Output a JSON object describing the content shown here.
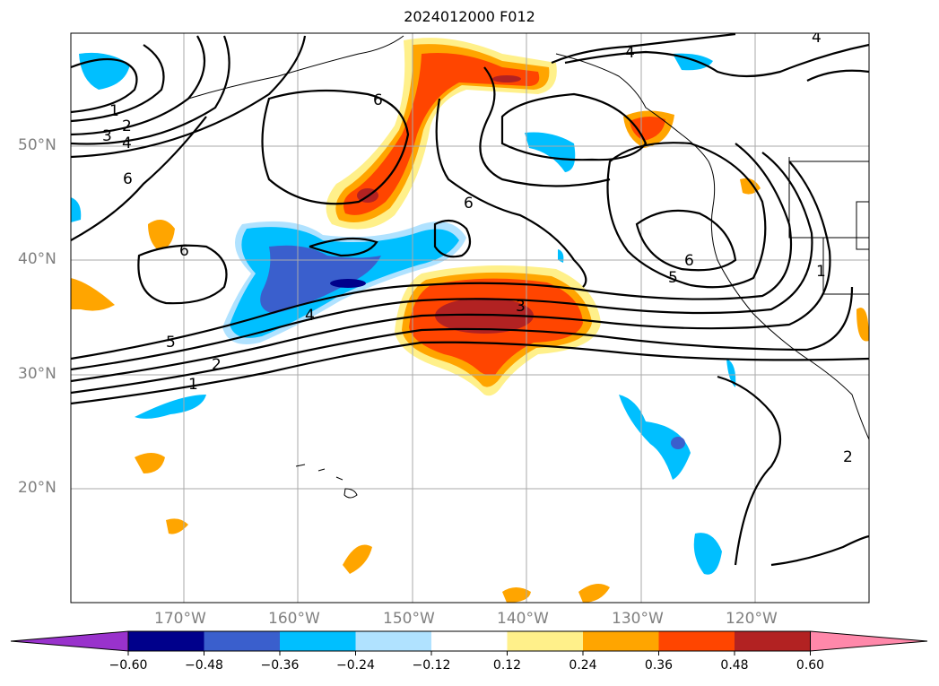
{
  "title": "2024012000 F012",
  "axes": {
    "lon_labels": [
      "170°W",
      "160°W",
      "150°W",
      "140°W",
      "130°W",
      "120°W"
    ],
    "lat_labels": [
      "50°N",
      "40°N",
      "30°N",
      "20°N"
    ]
  },
  "colorbar": {
    "tick_labels": [
      "−0.60",
      "−0.48",
      "−0.36",
      "−0.24",
      "−0.12",
      "0.12",
      "0.24",
      "0.36",
      "0.48",
      "0.60"
    ],
    "colors": [
      "#9932cc",
      "#00008b",
      "#3a5fcd",
      "#00bfff",
      "#b0e2ff",
      "#ffffff",
      "#fff08a",
      "#ffa500",
      "#ff4500",
      "#b22222",
      "#ff88aa"
    ]
  },
  "contour_labels": [
    "4",
    "4",
    "1",
    "2",
    "3",
    "4",
    "6",
    "6",
    "6",
    "6",
    "4",
    "3",
    "5",
    "2",
    "1",
    "6",
    "5",
    "1",
    "2"
  ]
}
